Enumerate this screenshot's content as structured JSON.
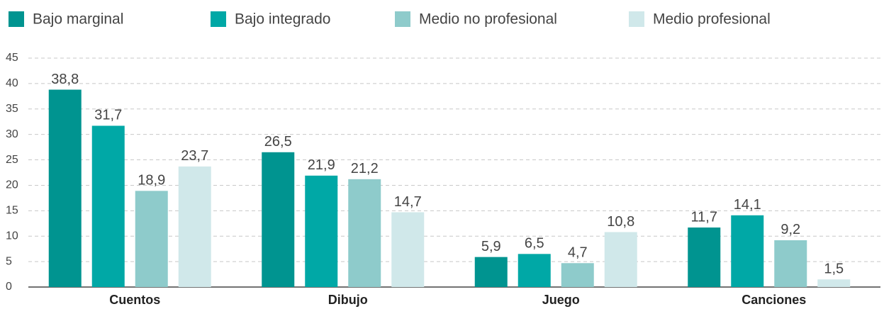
{
  "chart_data": {
    "type": "bar",
    "categories": [
      "Cuentos",
      "Dibujo",
      "Juego",
      "Canciones"
    ],
    "series": [
      {
        "name": "Bajo marginal",
        "color": "#009490",
        "values": [
          38.8,
          26.5,
          5.9,
          11.7
        ],
        "value_labels": [
          "38,8",
          "26,5",
          "5,9",
          "11,7"
        ]
      },
      {
        "name": "Bajo integrado",
        "color": "#00a8a6",
        "values": [
          31.7,
          21.9,
          6.5,
          14.1
        ],
        "value_labels": [
          "31,7",
          "21,9",
          "6,5",
          "14,1"
        ]
      },
      {
        "name": "Medio no profesional",
        "color": "#8ecbcb",
        "values": [
          18.9,
          21.2,
          4.7,
          9.2
        ],
        "value_labels": [
          "18,9",
          "21,2",
          "4,7",
          "9,2"
        ]
      },
      {
        "name": "Medio profesional",
        "color": "#d0e8ea",
        "values": [
          23.7,
          14.7,
          10.8,
          1.5
        ],
        "value_labels": [
          "23,7",
          "14,7",
          "10,8",
          "1,5"
        ]
      }
    ],
    "ylim": [
      0,
      45
    ],
    "yticks": [
      0,
      5,
      10,
      15,
      20,
      25,
      30,
      35,
      40,
      45
    ],
    "grid": true,
    "legend": "top"
  }
}
